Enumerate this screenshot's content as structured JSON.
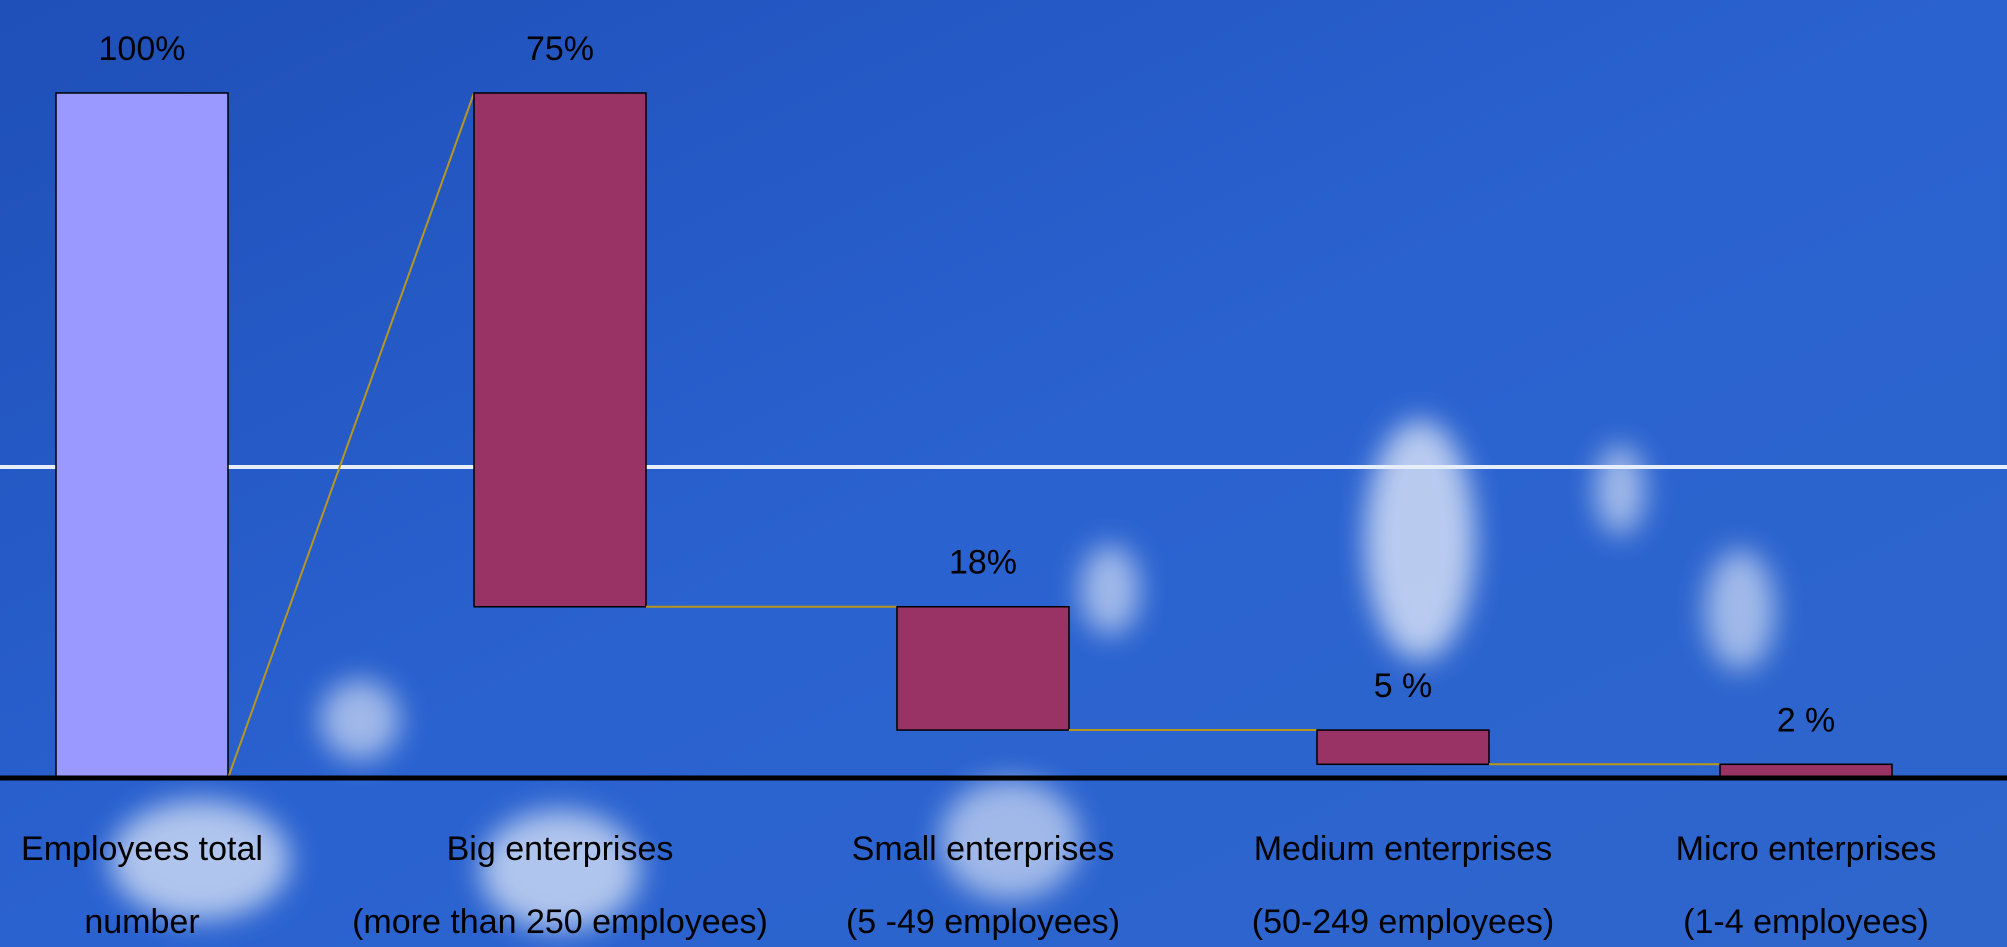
{
  "chart_data": {
    "type": "waterfall",
    "categories": [
      [
        "Employees total",
        "number"
      ],
      [
        "Big enterprises",
        "(more than  250 employees)"
      ],
      [
        "Small enterprises",
        "(5 -49 employees)"
      ],
      [
        "Medium enterprises",
        "(50-249 employees)"
      ],
      [
        "Micro enterprises",
        "(1-4 employees)"
      ]
    ],
    "values": [
      100,
      75,
      18,
      5,
      2
    ],
    "value_labels": [
      "100%",
      "75%",
      "18%",
      "5 %",
      "2 %"
    ],
    "colors": [
      "#9999ff",
      "#993366",
      "#993366",
      "#993366",
      "#993366"
    ],
    "connector_color": "#b8961e",
    "ylim": [
      0,
      100
    ]
  }
}
